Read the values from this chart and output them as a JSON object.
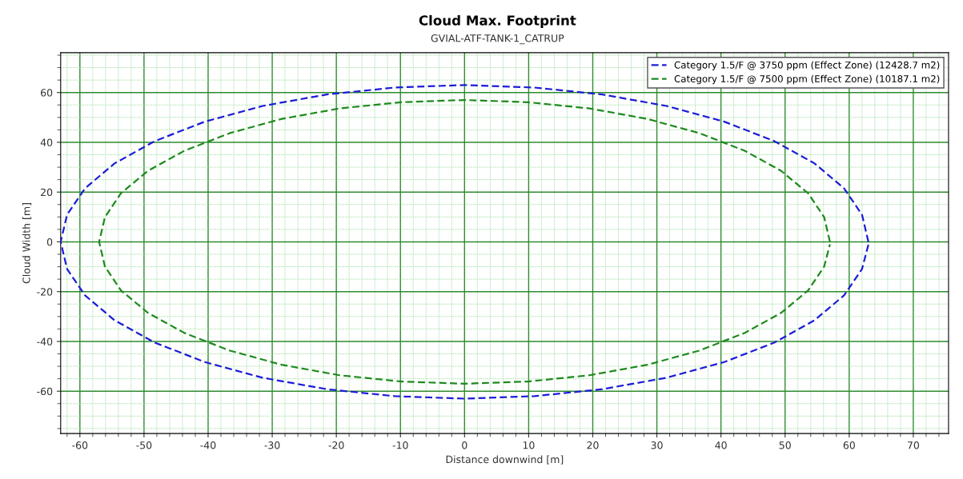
{
  "chart_data": {
    "type": "line",
    "title": "Cloud Max. Footprint",
    "subtitle": "GVIAL-ATF-TANK-1_CATRUP",
    "xlabel": "Distance downwind [m]",
    "ylabel": "Cloud Width [m]",
    "xlim": [
      -63,
      75.5
    ],
    "ylim": [
      -77,
      76
    ],
    "xticks": [
      {
        "value": -62,
        "label": null
      },
      -60,
      {
        "value": -58,
        "label": null
      },
      {
        "value": -56,
        "label": null
      },
      {
        "value": -54,
        "label": null
      },
      {
        "value": -52,
        "label": null
      },
      -50,
      {
        "value": -48,
        "label": null
      },
      {
        "value": -46,
        "label": null
      },
      {
        "value": -44,
        "label": null
      },
      {
        "value": -42,
        "label": null
      },
      -40,
      {
        "value": -38,
        "label": null
      },
      {
        "value": -36,
        "label": null
      },
      {
        "value": -34,
        "label": null
      },
      {
        "value": -32,
        "label": null
      },
      -30,
      {
        "value": -28,
        "label": null
      },
      {
        "value": -26,
        "label": null
      },
      {
        "value": -24,
        "label": null
      },
      {
        "value": -22,
        "label": null
      },
      -20,
      {
        "value": -18,
        "label": null
      },
      {
        "value": -16,
        "label": null
      },
      {
        "value": -14,
        "label": null
      },
      {
        "value": -12,
        "label": null
      },
      -10,
      {
        "value": -8,
        "label": null
      },
      {
        "value": -6,
        "label": null
      },
      {
        "value": -4,
        "label": null
      },
      {
        "value": -2,
        "label": null
      },
      0,
      {
        "value": 2,
        "label": null
      },
      {
        "value": 4,
        "label": null
      },
      {
        "value": 6,
        "label": null
      },
      {
        "value": 8,
        "label": null
      },
      10,
      {
        "value": 12,
        "label": null
      },
      {
        "value": 14,
        "label": null
      },
      {
        "value": 16,
        "label": null
      },
      {
        "value": 18,
        "label": null
      },
      20,
      {
        "value": 22,
        "label": null
      },
      {
        "value": 24,
        "label": null
      },
      {
        "value": 26,
        "label": null
      },
      {
        "value": 28,
        "label": null
      },
      30,
      {
        "value": 32,
        "label": null
      },
      {
        "value": 34,
        "label": null
      },
      {
        "value": 36,
        "label": null
      },
      {
        "value": 38,
        "label": null
      },
      40,
      {
        "value": 42,
        "label": null
      },
      {
        "value": 44,
        "label": null
      },
      {
        "value": 46,
        "label": null
      },
      {
        "value": 48,
        "label": null
      },
      50,
      {
        "value": 52,
        "label": null
      },
      {
        "value": 54,
        "label": null
      },
      {
        "value": 56,
        "label": null
      },
      {
        "value": 58,
        "label": null
      },
      60,
      {
        "value": 62,
        "label": null
      },
      {
        "value": 64,
        "label": null
      },
      {
        "value": 66,
        "label": null
      },
      {
        "value": 68,
        "label": null
      },
      70,
      {
        "value": 72,
        "label": null
      },
      {
        "value": 74,
        "label": null
      }
    ],
    "yticks": [
      {
        "value": -75,
        "label": null
      },
      {
        "value": -70,
        "label": null
      },
      {
        "value": -65,
        "label": null
      },
      -60,
      {
        "value": -55,
        "label": null
      },
      {
        "value": -50,
        "label": null
      },
      {
        "value": -45,
        "label": null
      },
      -40,
      {
        "value": -35,
        "label": null
      },
      {
        "value": -30,
        "label": null
      },
      {
        "value": -25,
        "label": null
      },
      -20,
      {
        "value": -15,
        "label": null
      },
      {
        "value": -10,
        "label": null
      },
      {
        "value": -5,
        "label": null
      },
      0,
      {
        "value": 5,
        "label": null
      },
      {
        "value": 10,
        "label": null
      },
      {
        "value": 15,
        "label": null
      },
      20,
      {
        "value": 25,
        "label": null
      },
      {
        "value": 30,
        "label": null
      },
      {
        "value": 35,
        "label": null
      },
      40,
      {
        "value": 45,
        "label": null
      },
      {
        "value": 50,
        "label": null
      },
      {
        "value": 55,
        "label": null
      },
      60,
      {
        "value": 65,
        "label": null
      },
      {
        "value": 70,
        "label": null
      },
      {
        "value": 75,
        "label": null
      }
    ],
    "grid": true,
    "legend": "top right",
    "line_style": "dashed",
    "marker": "none",
    "series": [
      {
        "name": "Category 1.5/F @ 3750 ppm (Effect Zone) (12428.7 m2)",
        "color": "#1c1cd8",
        "x": [
          63,
          62.0,
          59.2,
          54.6,
          48.3,
          40.5,
          31.5,
          21.5,
          10.9,
          0,
          -10.9,
          -21.5,
          -31.5,
          -40.5,
          -48.3,
          -54.6,
          -59.2,
          -62.0,
          -63,
          -62.0,
          -59.2,
          -54.6,
          -48.3,
          -40.5,
          -31.5,
          -21.5,
          -10.9,
          0,
          10.9,
          21.5,
          31.5,
          40.5,
          48.3,
          54.6,
          59.2,
          62.0,
          63.0
        ],
        "values": [
          0,
          10.9,
          21.5,
          31.5,
          40.5,
          48.3,
          54.6,
          59.2,
          62.0,
          63,
          62.0,
          59.2,
          54.6,
          48.3,
          40.5,
          31.5,
          21.5,
          10.9,
          0,
          -10.9,
          -21.5,
          -31.5,
          -40.5,
          -48.3,
          -54.6,
          -59.2,
          -62.0,
          -63,
          -62.0,
          -59.2,
          -54.6,
          -48.3,
          -40.5,
          -31.5,
          -21.5,
          -10.9,
          -1.1
        ]
      },
      {
        "name": "Category 1.5/F @ 7500 ppm (Effect Zone) (10187.1 m2)",
        "color": "#1e8a1e",
        "x": [
          57,
          56.1,
          53.6,
          49.4,
          43.7,
          36.6,
          28.5,
          19.5,
          9.9,
          0,
          -9.9,
          -19.5,
          -28.5,
          -36.6,
          -43.7,
          -49.4,
          -53.6,
          -56.1,
          -57,
          -56.1,
          -53.6,
          -49.4,
          -43.7,
          -36.6,
          -28.5,
          -19.5,
          -9.9,
          0,
          9.9,
          19.5,
          28.5,
          36.6,
          43.7,
          49.4,
          53.6,
          56.1,
          57.0
        ],
        "values": [
          0,
          9.9,
          19.5,
          28.5,
          36.6,
          43.7,
          49.4,
          53.6,
          56.1,
          57,
          56.1,
          53.6,
          49.4,
          43.7,
          36.6,
          28.5,
          19.5,
          9.9,
          0,
          -9.9,
          -19.5,
          -28.5,
          -36.6,
          -43.7,
          -49.4,
          -53.6,
          -56.1,
          -57,
          -56.1,
          -53.6,
          -49.4,
          -43.7,
          -36.6,
          -28.5,
          -19.5,
          -9.9,
          -1.0
        ]
      }
    ]
  }
}
